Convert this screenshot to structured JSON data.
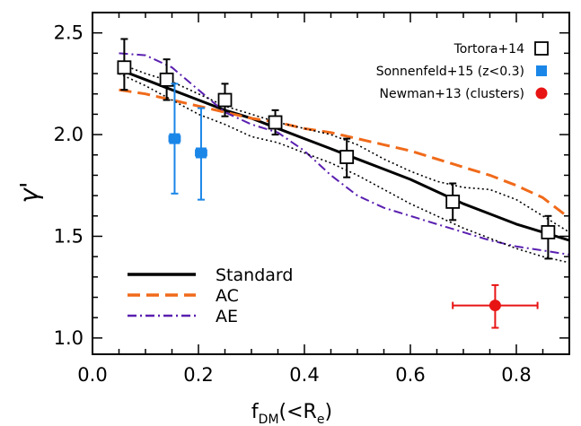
{
  "chart_data": {
    "type": "line",
    "xlabel": {
      "main": "f",
      "sub": "DM",
      "paren_open": "(<R",
      "sub2": "e",
      "paren_close": ")"
    },
    "ylabel": "γ'",
    "xlim": [
      0.0,
      0.9
    ],
    "ylim": [
      0.92,
      2.6
    ],
    "x_ticks": [
      0.0,
      0.2,
      0.4,
      0.6,
      0.8
    ],
    "x_tick_labels": [
      "0.0",
      "0.2",
      "0.4",
      "0.6",
      "0.8"
    ],
    "y_ticks": [
      1.0,
      1.5,
      2.0,
      2.5
    ],
    "y_tick_labels": [
      "1.0",
      "1.5",
      "2.0",
      "2.5"
    ],
    "grid": false,
    "colors": {
      "standard": "#000000",
      "ac": "#f06a1a",
      "ae": "#5a20b0",
      "sonnenfeld": "#1a86e8",
      "newman": "#e81414",
      "tortora": "#000000"
    },
    "lines": [
      {
        "name": "Standard",
        "style": "solid",
        "color": "#000000",
        "width": 3,
        "x": [
          0.05,
          0.1,
          0.15,
          0.2,
          0.25,
          0.3,
          0.35,
          0.4,
          0.45,
          0.5,
          0.55,
          0.6,
          0.65,
          0.7,
          0.75,
          0.8,
          0.85,
          0.9
        ],
        "y": [
          2.32,
          2.27,
          2.22,
          2.17,
          2.12,
          2.08,
          2.03,
          1.98,
          1.93,
          1.88,
          1.83,
          1.78,
          1.72,
          1.66,
          1.61,
          1.56,
          1.52,
          1.48
        ]
      },
      {
        "name": "AC",
        "style": "dashed",
        "color": "#f06a1a",
        "width": 3,
        "x": [
          0.05,
          0.1,
          0.15,
          0.2,
          0.25,
          0.3,
          0.35,
          0.4,
          0.45,
          0.5,
          0.55,
          0.6,
          0.65,
          0.7,
          0.75,
          0.8,
          0.85,
          0.9
        ],
        "y": [
          2.22,
          2.2,
          2.17,
          2.14,
          2.11,
          2.08,
          2.06,
          2.03,
          2.01,
          1.98,
          1.95,
          1.92,
          1.88,
          1.84,
          1.8,
          1.75,
          1.69,
          1.59
        ]
      },
      {
        "name": "AE",
        "style": "dashdot",
        "color": "#5a20b0",
        "width": 2,
        "x": [
          0.05,
          0.1,
          0.15,
          0.2,
          0.25,
          0.3,
          0.35,
          0.4,
          0.45,
          0.5,
          0.55,
          0.6,
          0.65,
          0.7,
          0.75,
          0.8,
          0.85,
          0.9
        ],
        "y": [
          2.4,
          2.39,
          2.33,
          2.22,
          2.11,
          2.05,
          2.01,
          1.92,
          1.8,
          1.7,
          1.64,
          1.6,
          1.56,
          1.52,
          1.48,
          1.45,
          1.43,
          1.41
        ]
      },
      {
        "name": "",
        "style": "dotted",
        "color": "#000000",
        "width": 1.6,
        "x": [
          0.05,
          0.1,
          0.15,
          0.2,
          0.25,
          0.3,
          0.35,
          0.4,
          0.45,
          0.5,
          0.55,
          0.6,
          0.65,
          0.7,
          0.75,
          0.8,
          0.85,
          0.9
        ],
        "y": [
          2.35,
          2.3,
          2.26,
          2.2,
          2.14,
          2.1,
          2.06,
          2.03,
          2.0,
          1.95,
          1.88,
          1.82,
          1.77,
          1.74,
          1.73,
          1.68,
          1.6,
          1.52
        ]
      },
      {
        "name": "",
        "style": "dotted",
        "color": "#000000",
        "width": 1.6,
        "x": [
          0.05,
          0.1,
          0.15,
          0.2,
          0.25,
          0.3,
          0.35,
          0.4,
          0.45,
          0.5,
          0.55,
          0.6,
          0.65,
          0.7,
          0.75,
          0.8,
          0.85,
          0.9
        ],
        "y": [
          2.3,
          2.24,
          2.17,
          2.1,
          2.05,
          1.99,
          1.96,
          1.91,
          1.86,
          1.8,
          1.73,
          1.66,
          1.6,
          1.54,
          1.49,
          1.44,
          1.4,
          1.37
        ]
      }
    ],
    "points": [
      {
        "name": "Tortora+14",
        "marker": "open-square",
        "color": "#000000",
        "data": [
          {
            "x": 0.06,
            "y": 2.33,
            "ylo": 2.22,
            "yhi": 2.47
          },
          {
            "x": 0.14,
            "y": 2.27,
            "ylo": 2.17,
            "yhi": 2.37
          },
          {
            "x": 0.25,
            "y": 2.17,
            "ylo": 2.09,
            "yhi": 2.25
          },
          {
            "x": 0.345,
            "y": 2.06,
            "ylo": 2.0,
            "yhi": 2.12
          },
          {
            "x": 0.48,
            "y": 1.89,
            "ylo": 1.79,
            "yhi": 1.98
          },
          {
            "x": 0.68,
            "y": 1.67,
            "ylo": 1.58,
            "yhi": 1.76
          },
          {
            "x": 0.86,
            "y": 1.52,
            "ylo": 1.39,
            "yhi": 1.6
          }
        ]
      },
      {
        "name": "Sonnenfeld+15 (z<0.3)",
        "marker": "filled-square",
        "color": "#1a86e8",
        "data": [
          {
            "x": 0.155,
            "y": 1.98,
            "ylo": 1.71,
            "yhi": 2.25,
            "xlo": 0.145,
            "xhi": 0.165
          },
          {
            "x": 0.205,
            "y": 1.91,
            "ylo": 1.68,
            "yhi": 2.13,
            "xlo": 0.195,
            "xhi": 0.215
          }
        ]
      },
      {
        "name": "Newman+13 (clusters)",
        "marker": "filled-circle",
        "color": "#e81414",
        "data": [
          {
            "x": 0.76,
            "y": 1.16,
            "ylo": 1.05,
            "yhi": 1.26,
            "xlo": 0.68,
            "xhi": 0.84
          }
        ]
      }
    ],
    "legend_lines": [
      "Standard",
      "AC",
      "AE"
    ],
    "legend_points": [
      "Tortora+14",
      "Sonnenfeld+15 (z<0.3)",
      "Newman+13 (clusters)"
    ]
  }
}
